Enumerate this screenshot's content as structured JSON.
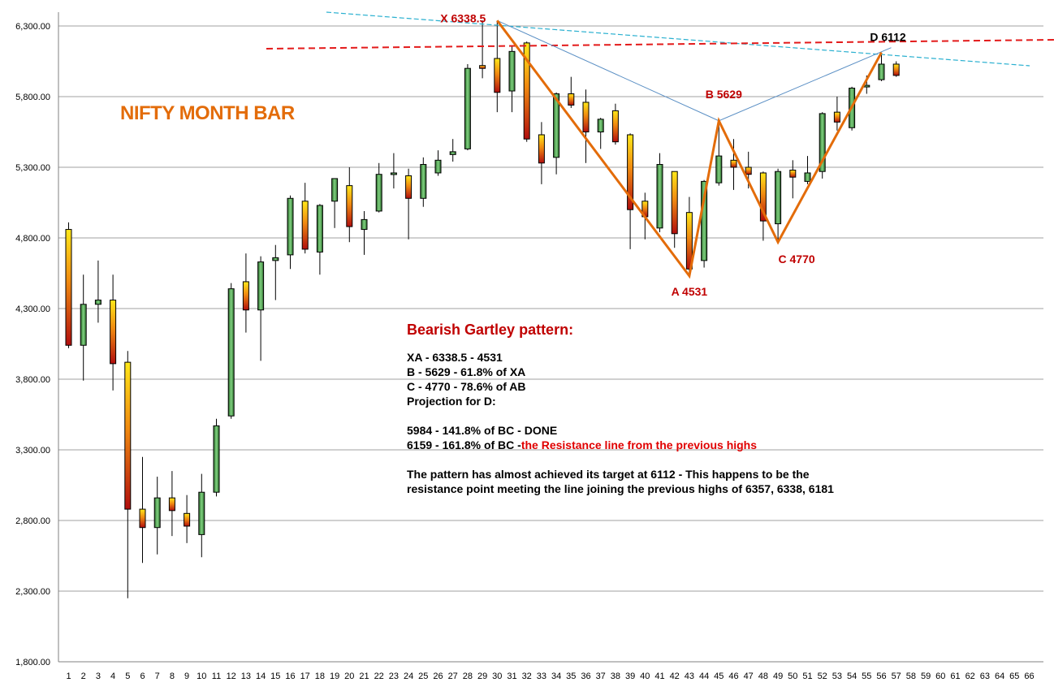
{
  "chart_data": {
    "type": "candlestick",
    "title": "NIFTY MONTH BAR",
    "ylim": [
      1800,
      6300
    ],
    "yticks": [
      "1,800.00",
      "2,300.00",
      "2,800.00",
      "3,300.00",
      "3,800.00",
      "4,300.00",
      "4,800.00",
      "5,300.00",
      "5,800.00",
      "6,300.00"
    ],
    "xticks": [
      "1",
      "2",
      "3",
      "4",
      "5",
      "6",
      "7",
      "8",
      "9",
      "10",
      "11",
      "12",
      "13",
      "14",
      "15",
      "16",
      "17",
      "18",
      "19",
      "20",
      "21",
      "22",
      "23",
      "24",
      "25",
      "26",
      "27",
      "28",
      "29",
      "30",
      "31",
      "32",
      "33",
      "34",
      "35",
      "36",
      "37",
      "38",
      "39",
      "40",
      "41",
      "42",
      "43",
      "44",
      "45",
      "46",
      "47",
      "48",
      "49",
      "50",
      "51",
      "52",
      "53",
      "54",
      "55",
      "56",
      "57",
      "58",
      "59",
      "60",
      "61",
      "62",
      "63",
      "64",
      "65",
      "66"
    ],
    "grid": true,
    "candles": [
      {
        "x": 1,
        "o": 4860,
        "h": 4910,
        "l": 4020,
        "c": 4040
      },
      {
        "x": 2,
        "o": 4040,
        "h": 4540,
        "l": 3790,
        "c": 4330
      },
      {
        "x": 3,
        "o": 4330,
        "h": 4640,
        "l": 4200,
        "c": 4360
      },
      {
        "x": 4,
        "o": 4360,
        "h": 4540,
        "l": 3720,
        "c": 3910
      },
      {
        "x": 5,
        "o": 3920,
        "h": 4000,
        "l": 2250,
        "c": 2880
      },
      {
        "x": 6,
        "o": 2880,
        "h": 3250,
        "l": 2500,
        "c": 2750
      },
      {
        "x": 7,
        "o": 2750,
        "h": 3110,
        "l": 2560,
        "c": 2960
      },
      {
        "x": 8,
        "o": 2960,
        "h": 3150,
        "l": 2690,
        "c": 2870
      },
      {
        "x": 9,
        "o": 2850,
        "h": 2980,
        "l": 2640,
        "c": 2760
      },
      {
        "x": 10,
        "o": 2700,
        "h": 3130,
        "l": 2540,
        "c": 3000
      },
      {
        "x": 11,
        "o": 3000,
        "h": 3520,
        "l": 2970,
        "c": 3470
      },
      {
        "x": 12,
        "o": 3540,
        "h": 4480,
        "l": 3520,
        "c": 4440
      },
      {
        "x": 13,
        "o": 4490,
        "h": 4690,
        "l": 4130,
        "c": 4290
      },
      {
        "x": 14,
        "o": 4290,
        "h": 4670,
        "l": 3930,
        "c": 4630
      },
      {
        "x": 15,
        "o": 4640,
        "h": 4750,
        "l": 4360,
        "c": 4660
      },
      {
        "x": 16,
        "o": 4680,
        "h": 5100,
        "l": 4580,
        "c": 5080
      },
      {
        "x": 17,
        "o": 5060,
        "h": 5190,
        "l": 4690,
        "c": 4720
      },
      {
        "x": 18,
        "o": 4700,
        "h": 5040,
        "l": 4540,
        "c": 5030
      },
      {
        "x": 19,
        "o": 5060,
        "h": 5220,
        "l": 4870,
        "c": 5220
      },
      {
        "x": 20,
        "o": 5170,
        "h": 5300,
        "l": 4770,
        "c": 4880
      },
      {
        "x": 21,
        "o": 4860,
        "h": 4990,
        "l": 4680,
        "c": 4930
      },
      {
        "x": 22,
        "o": 4990,
        "h": 5330,
        "l": 4980,
        "c": 5250
      },
      {
        "x": 23,
        "o": 5260,
        "h": 5400,
        "l": 5150,
        "c": 5260
      },
      {
        "x": 24,
        "o": 5240,
        "h": 5290,
        "l": 4790,
        "c": 5080
      },
      {
        "x": 25,
        "o": 5080,
        "h": 5370,
        "l": 5020,
        "c": 5320
      },
      {
        "x": 26,
        "o": 5260,
        "h": 5420,
        "l": 5240,
        "c": 5350
      },
      {
        "x": 27,
        "o": 5390,
        "h": 5500,
        "l": 5340,
        "c": 5410
      },
      {
        "x": 28,
        "o": 5430,
        "h": 6030,
        "l": 5420,
        "c": 6000
      },
      {
        "x": 29,
        "o": 6020,
        "h": 6340,
        "l": 5930,
        "c": 6000
      },
      {
        "x": 30,
        "o": 6070,
        "h": 6338,
        "l": 5690,
        "c": 5830
      },
      {
        "x": 31,
        "o": 5840,
        "h": 6160,
        "l": 5690,
        "c": 6120
      },
      {
        "x": 32,
        "o": 6180,
        "h": 6190,
        "l": 5480,
        "c": 5500
      },
      {
        "x": 33,
        "o": 5530,
        "h": 5620,
        "l": 5180,
        "c": 5330
      },
      {
        "x": 34,
        "o": 5370,
        "h": 5830,
        "l": 5250,
        "c": 5820
      },
      {
        "x": 35,
        "o": 5820,
        "h": 5940,
        "l": 5720,
        "c": 5740
      },
      {
        "x": 36,
        "o": 5760,
        "h": 5850,
        "l": 5330,
        "c": 5550
      },
      {
        "x": 37,
        "o": 5550,
        "h": 5650,
        "l": 5430,
        "c": 5640
      },
      {
        "x": 38,
        "o": 5700,
        "h": 5750,
        "l": 5460,
        "c": 5480
      },
      {
        "x": 39,
        "o": 5530,
        "h": 5540,
        "l": 4720,
        "c": 5000
      },
      {
        "x": 40,
        "o": 5060,
        "h": 5120,
        "l": 4790,
        "c": 4950
      },
      {
        "x": 41,
        "o": 4870,
        "h": 5400,
        "l": 4840,
        "c": 5320
      },
      {
        "x": 42,
        "o": 5270,
        "h": 5270,
        "l": 4730,
        "c": 4830
      },
      {
        "x": 43,
        "o": 4980,
        "h": 5090,
        "l": 4531,
        "c": 4580
      },
      {
        "x": 44,
        "o": 4640,
        "h": 5210,
        "l": 4590,
        "c": 5200
      },
      {
        "x": 45,
        "o": 5190,
        "h": 5629,
        "l": 5170,
        "c": 5380
      },
      {
        "x": 46,
        "o": 5350,
        "h": 5500,
        "l": 5140,
        "c": 5300
      },
      {
        "x": 47,
        "o": 5300,
        "h": 5410,
        "l": 5150,
        "c": 5250
      },
      {
        "x": 48,
        "o": 5260,
        "h": 5270,
        "l": 4780,
        "c": 4920
      },
      {
        "x": 49,
        "o": 4900,
        "h": 5290,
        "l": 4770,
        "c": 5270
      },
      {
        "x": 50,
        "o": 5280,
        "h": 5350,
        "l": 5080,
        "c": 5230
      },
      {
        "x": 51,
        "o": 5200,
        "h": 5380,
        "l": 5180,
        "c": 5260
      },
      {
        "x": 52,
        "o": 5270,
        "h": 5690,
        "l": 5220,
        "c": 5680
      },
      {
        "x": 53,
        "o": 5690,
        "h": 5800,
        "l": 5560,
        "c": 5620
      },
      {
        "x": 54,
        "o": 5580,
        "h": 5870,
        "l": 5560,
        "c": 5860
      },
      {
        "x": 55,
        "o": 5870,
        "h": 5950,
        "l": 5820,
        "c": 5880
      },
      {
        "x": 56,
        "o": 5920,
        "h": 6112,
        "l": 5910,
        "c": 6030
      },
      {
        "x": 57,
        "o": 6030,
        "h": 6050,
        "l": 5940,
        "c": 5950
      }
    ],
    "pattern_points": [
      {
        "name": "X",
        "label": "X 6338.5",
        "x": 30,
        "y": 6338.5
      },
      {
        "name": "A",
        "label": "A 4531",
        "x": 43,
        "y": 4531
      },
      {
        "name": "B",
        "label": "B 5629",
        "x": 45,
        "y": 5629
      },
      {
        "name": "C",
        "label": "C 4770",
        "x": 49,
        "y": 4770
      },
      {
        "name": "D",
        "label": "D 6112",
        "x": 56,
        "y": 6112
      }
    ],
    "colors": {
      "bullish": "#339933",
      "bearish": "#d21f1f",
      "bearish_top": "#f2d01a",
      "pattern_line": "#e36c0a",
      "xb_bd_line": "#5a8fc4",
      "trend_line": "#2ab0d0",
      "resistance_line": "#e31a1a",
      "grid": "#a0a0a0",
      "point_label": "#c00000",
      "title": "#e36c0a"
    }
  },
  "notes": {
    "heading": "Bearish Gartley pattern:",
    "line1": "XA  - 6338.5 -  4531",
    "line2": "B - 5629 - 61.8% of XA",
    "line3": "C - 4770 - 78.6% of AB",
    "line4": "Projection for D:",
    "line5": "5984 - 141.8% of BC - DONE",
    "line6_main": "6159 - 161.8% of BC -",
    "line6_red": "the Resistance line from the previous highs",
    "paragraph": "The pattern has almost achieved its target at 6112 - This happens to be the resistance point  meeting the line joining the previous highs of 6357, 6338, 6181"
  }
}
